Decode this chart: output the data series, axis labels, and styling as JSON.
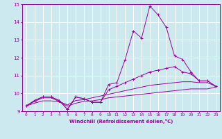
{
  "x": [
    0,
    1,
    2,
    3,
    4,
    5,
    6,
    7,
    8,
    9,
    10,
    11,
    12,
    13,
    14,
    15,
    16,
    17,
    18,
    19,
    20,
    21,
    22,
    23
  ],
  "line1": [
    9.3,
    9.6,
    9.8,
    9.8,
    9.6,
    9.1,
    9.8,
    9.7,
    9.5,
    9.5,
    10.5,
    10.6,
    11.9,
    13.5,
    13.1,
    14.9,
    14.4,
    13.7,
    12.1,
    11.9,
    11.2,
    10.7,
    10.7,
    10.4
  ],
  "line2": [
    9.3,
    9.6,
    9.8,
    9.8,
    9.6,
    9.1,
    9.8,
    9.7,
    9.5,
    9.5,
    10.2,
    10.4,
    10.6,
    10.8,
    11.0,
    11.2,
    11.3,
    11.4,
    11.5,
    11.2,
    11.1,
    10.7,
    10.7,
    10.4
  ],
  "line3": [
    9.3,
    9.55,
    9.75,
    9.75,
    9.55,
    9.35,
    9.6,
    9.65,
    9.75,
    9.85,
    9.95,
    10.05,
    10.15,
    10.25,
    10.35,
    10.45,
    10.5,
    10.55,
    10.6,
    10.65,
    10.65,
    10.6,
    10.6,
    10.4
  ],
  "line4": [
    9.3,
    9.45,
    9.58,
    9.58,
    9.52,
    9.28,
    9.45,
    9.55,
    9.58,
    9.65,
    9.75,
    9.8,
    9.85,
    9.9,
    9.95,
    10.0,
    10.05,
    10.1,
    10.15,
    10.2,
    10.25,
    10.25,
    10.25,
    10.35
  ],
  "line_color": "#990099",
  "bg_color": "#cce9f0",
  "grid_color": "#ffffff",
  "xlabel": "Windchill (Refroidissement éolien,°C)",
  "ylim": [
    9,
    15
  ],
  "xlim": [
    -0.5,
    23.5
  ],
  "yticks": [
    9,
    10,
    11,
    12,
    13,
    14,
    15
  ],
  "xticks": [
    0,
    1,
    2,
    3,
    4,
    5,
    6,
    7,
    8,
    9,
    10,
    11,
    12,
    13,
    14,
    15,
    16,
    17,
    18,
    19,
    20,
    21,
    22,
    23
  ]
}
